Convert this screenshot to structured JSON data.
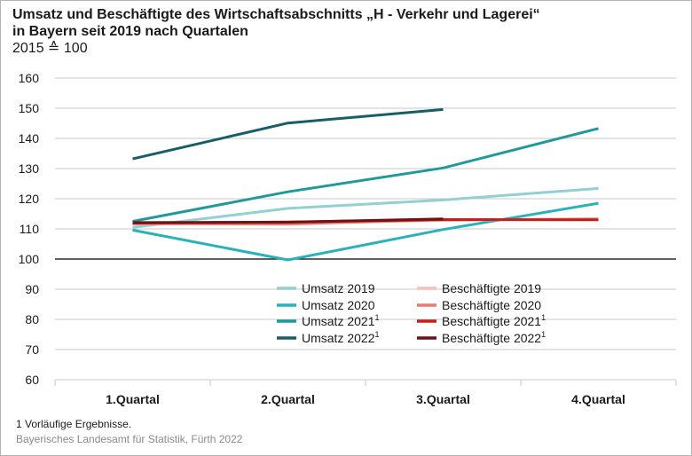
{
  "title": {
    "line1": "Umsatz und Beschäftigte des Wirtschaftsabschnitts „H - Verkehr und Lagerei“",
    "line2": "in Bayern seit 2019 nach Quartalen",
    "line3": "2015 ≙ 100"
  },
  "footnote": "1  Vorläufige Ergebnisse.",
  "source": "Bayerisches Landesamt für Statistik, Fürth 2022",
  "chart_data": {
    "type": "line",
    "categories": [
      "1.Quartal",
      "2.Quartal",
      "3.Quartal",
      "4.Quartal"
    ],
    "ylim": [
      60,
      160
    ],
    "yticks": [
      60,
      70,
      80,
      90,
      100,
      110,
      120,
      130,
      140,
      150,
      160
    ],
    "baseline": 100,
    "legend_position": "bottom-center",
    "series": [
      {
        "name": "Umsatz 2019",
        "sup": "",
        "color": "#93d0cf",
        "values": [
          110.5,
          116.8,
          119.6,
          123.4
        ]
      },
      {
        "name": "Umsatz 2020",
        "sup": "",
        "color": "#2ab1b9",
        "values": [
          109.6,
          99.7,
          109.8,
          118.5
        ]
      },
      {
        "name": "Umsatz 2021",
        "sup": "1",
        "color": "#21999a",
        "values": [
          112.5,
          122.3,
          130.2,
          143.3
        ]
      },
      {
        "name": "Umsatz 2022",
        "sup": "1",
        "color": "#185f65",
        "values": [
          133.2,
          145.1,
          149.6,
          null
        ]
      },
      {
        "name": "Beschäftigte 2019",
        "sup": "",
        "color": "#f7bfb6",
        "values": [
          111.6,
          112.0,
          112.8,
          113.4
        ]
      },
      {
        "name": "Beschäftigte 2020",
        "sup": "",
        "color": "#e67a70",
        "values": [
          111.8,
          111.6,
          113.0,
          113.2
        ]
      },
      {
        "name": "Beschäftigte 2021",
        "sup": "1",
        "color": "#c41e1e",
        "values": [
          111.9,
          112.3,
          113.1,
          113.0
        ]
      },
      {
        "name": "Beschäftigte 2022",
        "sup": "1",
        "color": "#6e1216",
        "values": [
          112.1,
          112.2,
          113.3,
          null
        ]
      }
    ]
  }
}
